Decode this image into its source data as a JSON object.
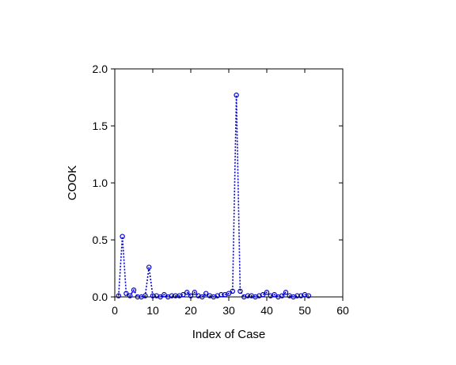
{
  "chart_data": {
    "type": "line",
    "title": "",
    "xlabel": "Index of Case",
    "ylabel": "COOK",
    "xlim": [
      0,
      60
    ],
    "ylim": [
      0,
      2.0
    ],
    "xticks": [
      0,
      10,
      20,
      30,
      40,
      50,
      60
    ],
    "yticks": [
      0.0,
      0.5,
      1.0,
      1.5,
      2.0
    ],
    "ytick_labels": [
      "0.0",
      "0.5",
      "1.0",
      "1.5",
      "2.0"
    ],
    "grid": false,
    "line_style": "dotted",
    "marker": "open-circle",
    "color": "#0000cc",
    "series": [
      {
        "x": [
          1,
          2,
          3,
          4,
          5,
          6,
          7,
          8,
          9,
          10,
          11,
          12,
          13,
          14,
          15,
          16,
          17,
          18,
          19,
          20,
          21,
          22,
          23,
          24,
          25,
          26,
          27,
          28,
          29,
          30,
          31,
          32,
          33,
          34,
          35,
          36,
          37,
          38,
          39,
          40,
          41,
          42,
          43,
          44,
          45,
          46,
          47,
          48,
          49,
          50,
          51
        ],
        "values": [
          0.01,
          0.53,
          0.03,
          0.01,
          0.06,
          0.0,
          0.0,
          0.01,
          0.26,
          0.01,
          0.01,
          0.0,
          0.02,
          0.0,
          0.01,
          0.01,
          0.01,
          0.02,
          0.04,
          0.01,
          0.04,
          0.01,
          0.0,
          0.03,
          0.01,
          0.0,
          0.01,
          0.02,
          0.02,
          0.03,
          0.05,
          1.77,
          0.05,
          0.0,
          0.01,
          0.01,
          0.0,
          0.01,
          0.02,
          0.04,
          0.01,
          0.02,
          0.0,
          0.01,
          0.04,
          0.01,
          0.0,
          0.01,
          0.01,
          0.02,
          0.01
        ]
      }
    ]
  }
}
